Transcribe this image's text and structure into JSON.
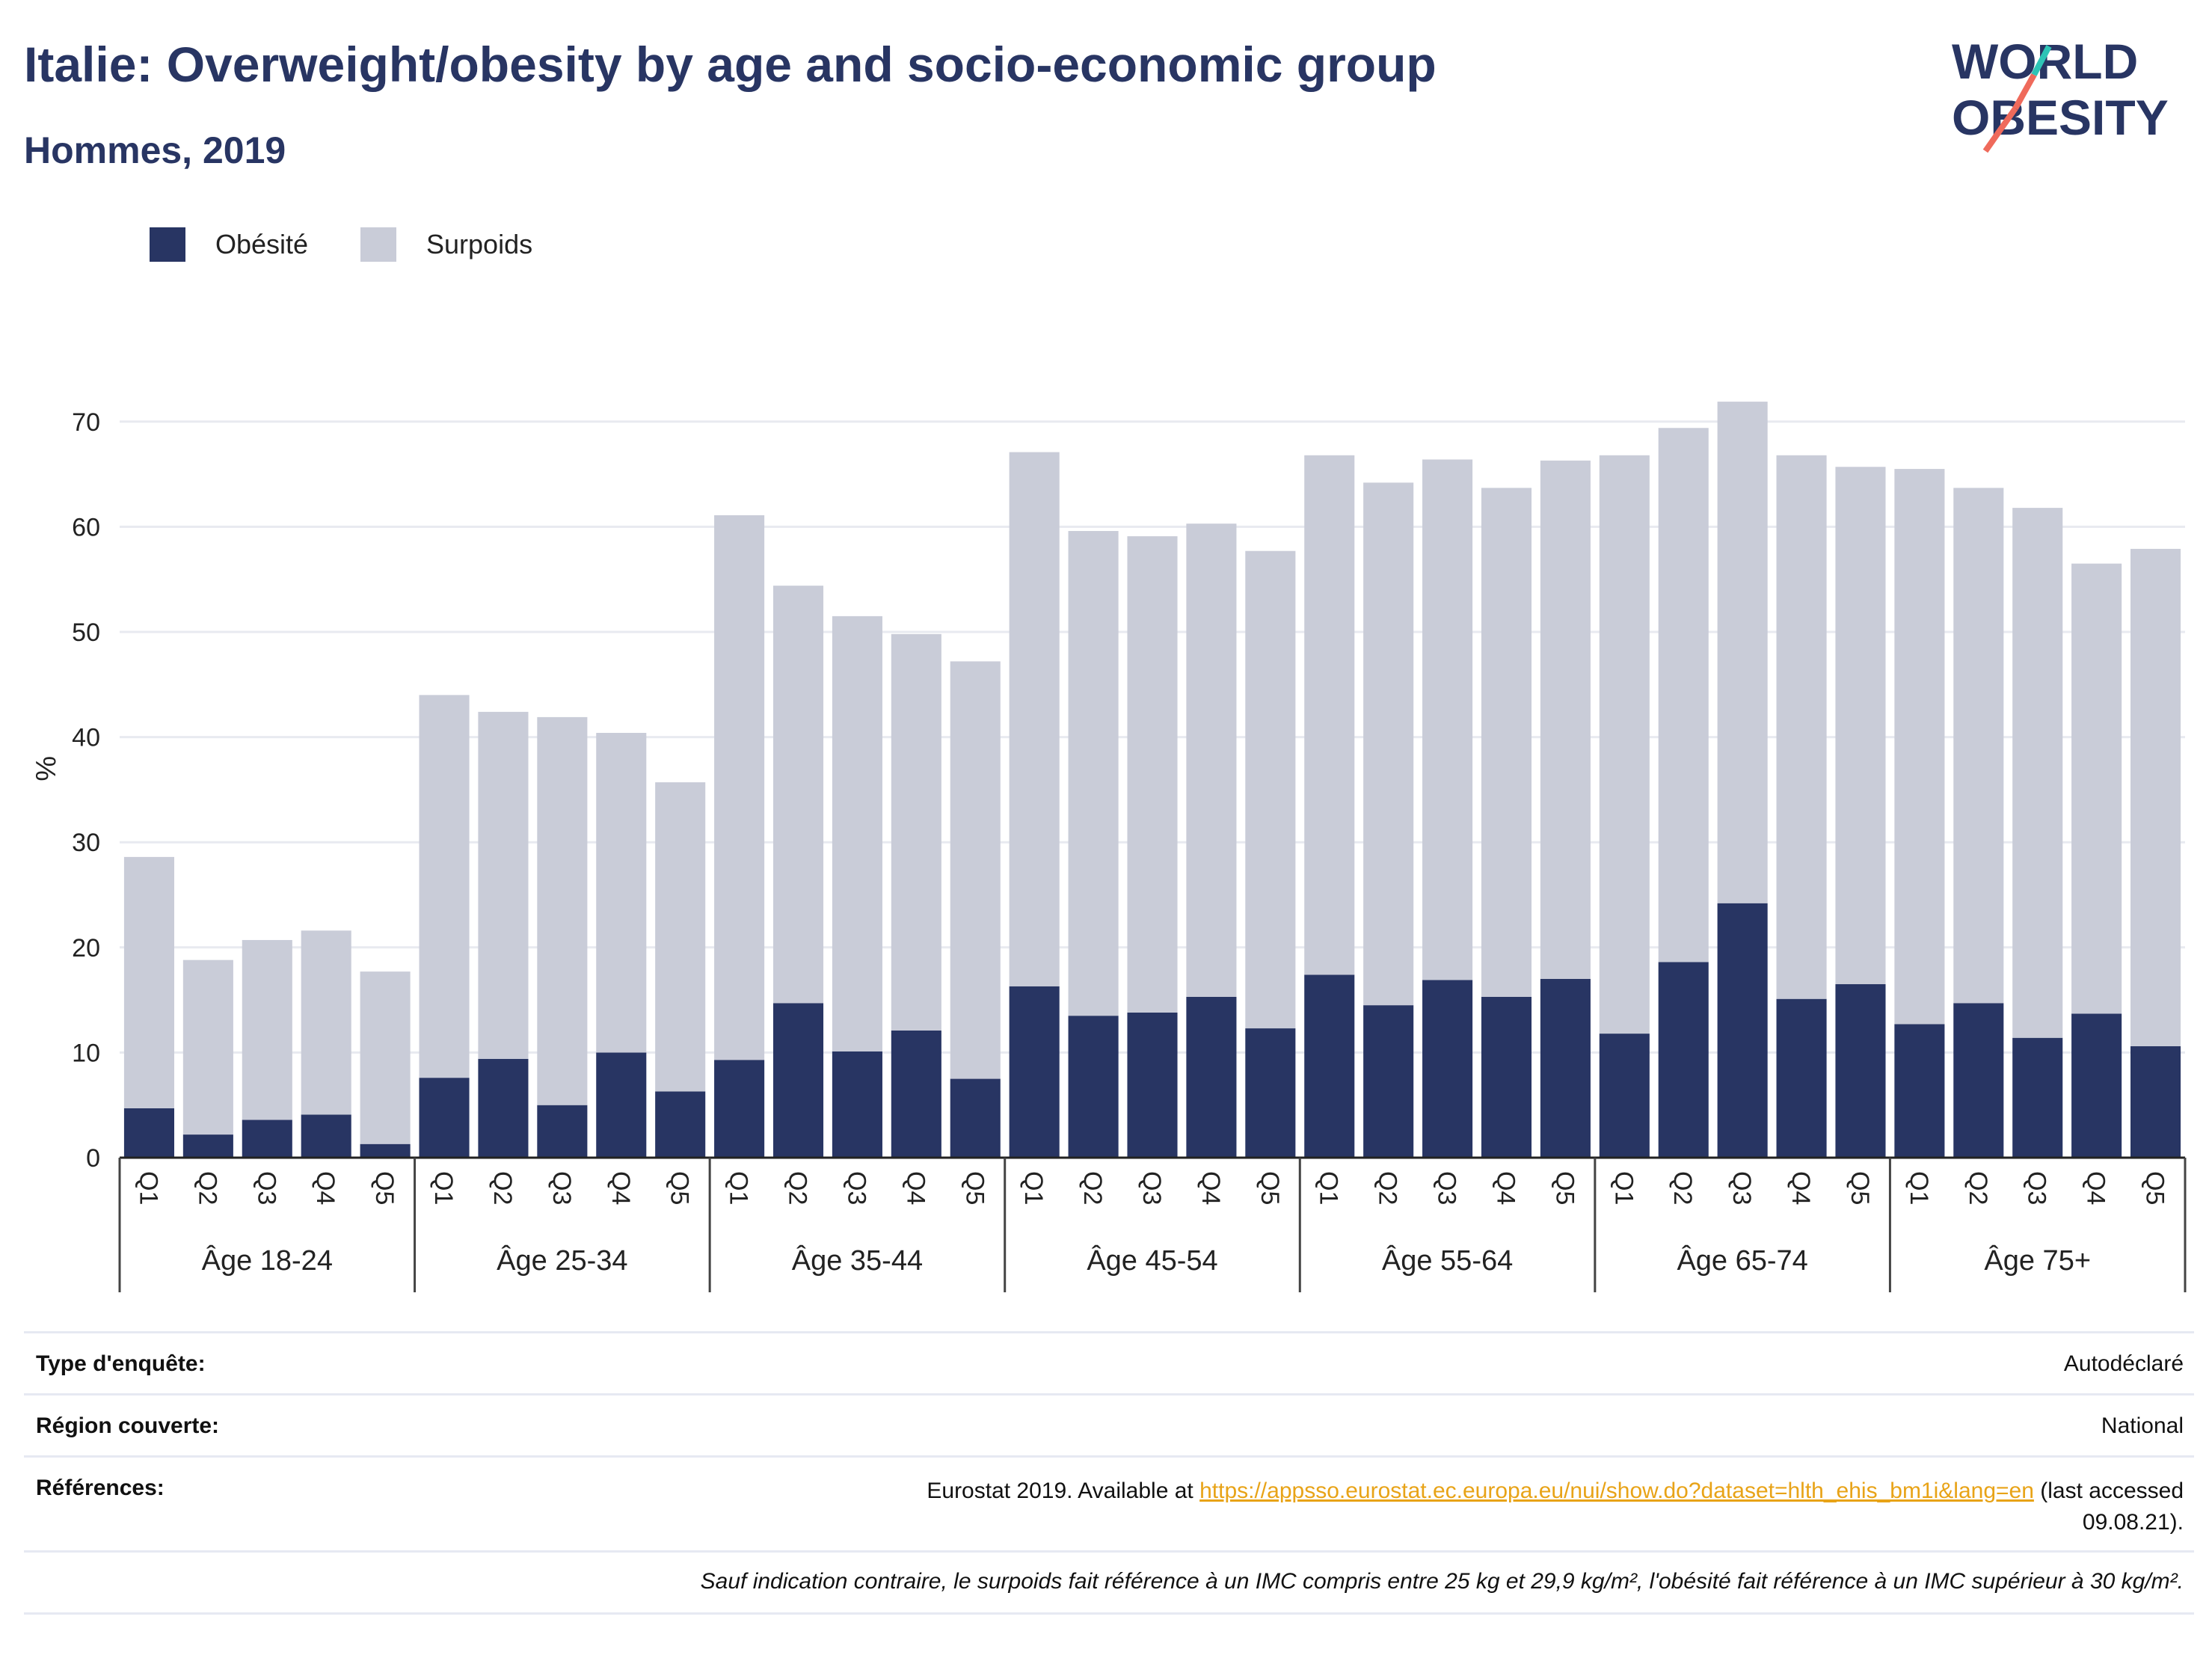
{
  "header": {
    "title": "Italie: Overweight/obesity by age and socio-economic group",
    "subtitle": "Hommes, 2019"
  },
  "logo": {
    "line1": "WORLD",
    "line2": "OBESITY",
    "colors": {
      "text": "#283563",
      "slash_top": "#2ec4b6",
      "slash_bottom": "#ef6a5b"
    }
  },
  "colors": {
    "obesite": "#283563",
    "surpoids": "#c9ccd8",
    "grid": "#e8eaf0",
    "axis": "#222222",
    "link": "#e8a317"
  },
  "legend": {
    "placement": "top-left",
    "items": [
      {
        "label": "Obésité",
        "color": "#283563"
      },
      {
        "label": "Surpoids",
        "color": "#c9ccd8"
      }
    ]
  },
  "chart_data": {
    "type": "bar",
    "stacked": true,
    "ylabel": "%",
    "ylim": [
      0,
      75
    ],
    "yticks": [
      0,
      10,
      20,
      30,
      40,
      50,
      60,
      70
    ],
    "grid": true,
    "groups": [
      "Âge 18-24",
      "Âge 25-34",
      "Âge 35-44",
      "Âge 45-54",
      "Âge 55-64",
      "Âge 65-74",
      "Âge 75+"
    ],
    "subcategories": [
      "Q1",
      "Q2",
      "Q3",
      "Q4",
      "Q5"
    ],
    "series": [
      {
        "name": "Obésité",
        "values": [
          [
            4.7,
            2.2,
            3.6,
            4.1,
            1.3
          ],
          [
            7.6,
            9.4,
            5.0,
            10.0,
            6.3
          ],
          [
            9.3,
            14.7,
            10.1,
            12.1,
            7.5
          ],
          [
            16.3,
            13.5,
            13.8,
            15.3,
            12.3
          ],
          [
            17.4,
            14.5,
            16.9,
            15.3,
            17.0
          ],
          [
            11.8,
            18.6,
            24.2,
            15.1,
            16.5
          ],
          [
            12.7,
            14.7,
            11.4,
            13.7,
            10.6
          ]
        ]
      },
      {
        "name": "Surpoids",
        "values": [
          [
            23.9,
            16.6,
            17.1,
            17.5,
            16.4
          ],
          [
            36.4,
            33.0,
            36.9,
            30.4,
            29.4
          ],
          [
            51.8,
            39.7,
            41.4,
            37.7,
            39.7
          ],
          [
            50.8,
            46.1,
            45.3,
            45.0,
            45.4
          ],
          [
            49.4,
            49.7,
            49.5,
            48.4,
            49.3
          ],
          [
            55.0,
            50.8,
            47.7,
            51.7,
            49.2
          ],
          [
            52.8,
            49.0,
            50.4,
            42.8,
            47.3
          ]
        ]
      }
    ]
  },
  "info_table": {
    "survey_type_label": "Type d'enquête:",
    "survey_type_value": "Autodéclaré",
    "region_label": "Région couverte:",
    "region_value": "National",
    "references_label": "Références:",
    "references_prefix": "Eurostat 2019. Available at",
    "references_link": "https://appsso.eurostat.ec.europa.eu/nui/show.do?dataset=hlth_ehis_bm1i&lang=en",
    "references_suffix": "(last accessed",
    "references_suffix2": "09.08.21).",
    "note": "Sauf indication contraire, le surpoids fait référence à un IMC compris entre 25 kg et 29,9 kg/m², l'obésité fait référence à un IMC supérieur à 30 kg/m²."
  }
}
